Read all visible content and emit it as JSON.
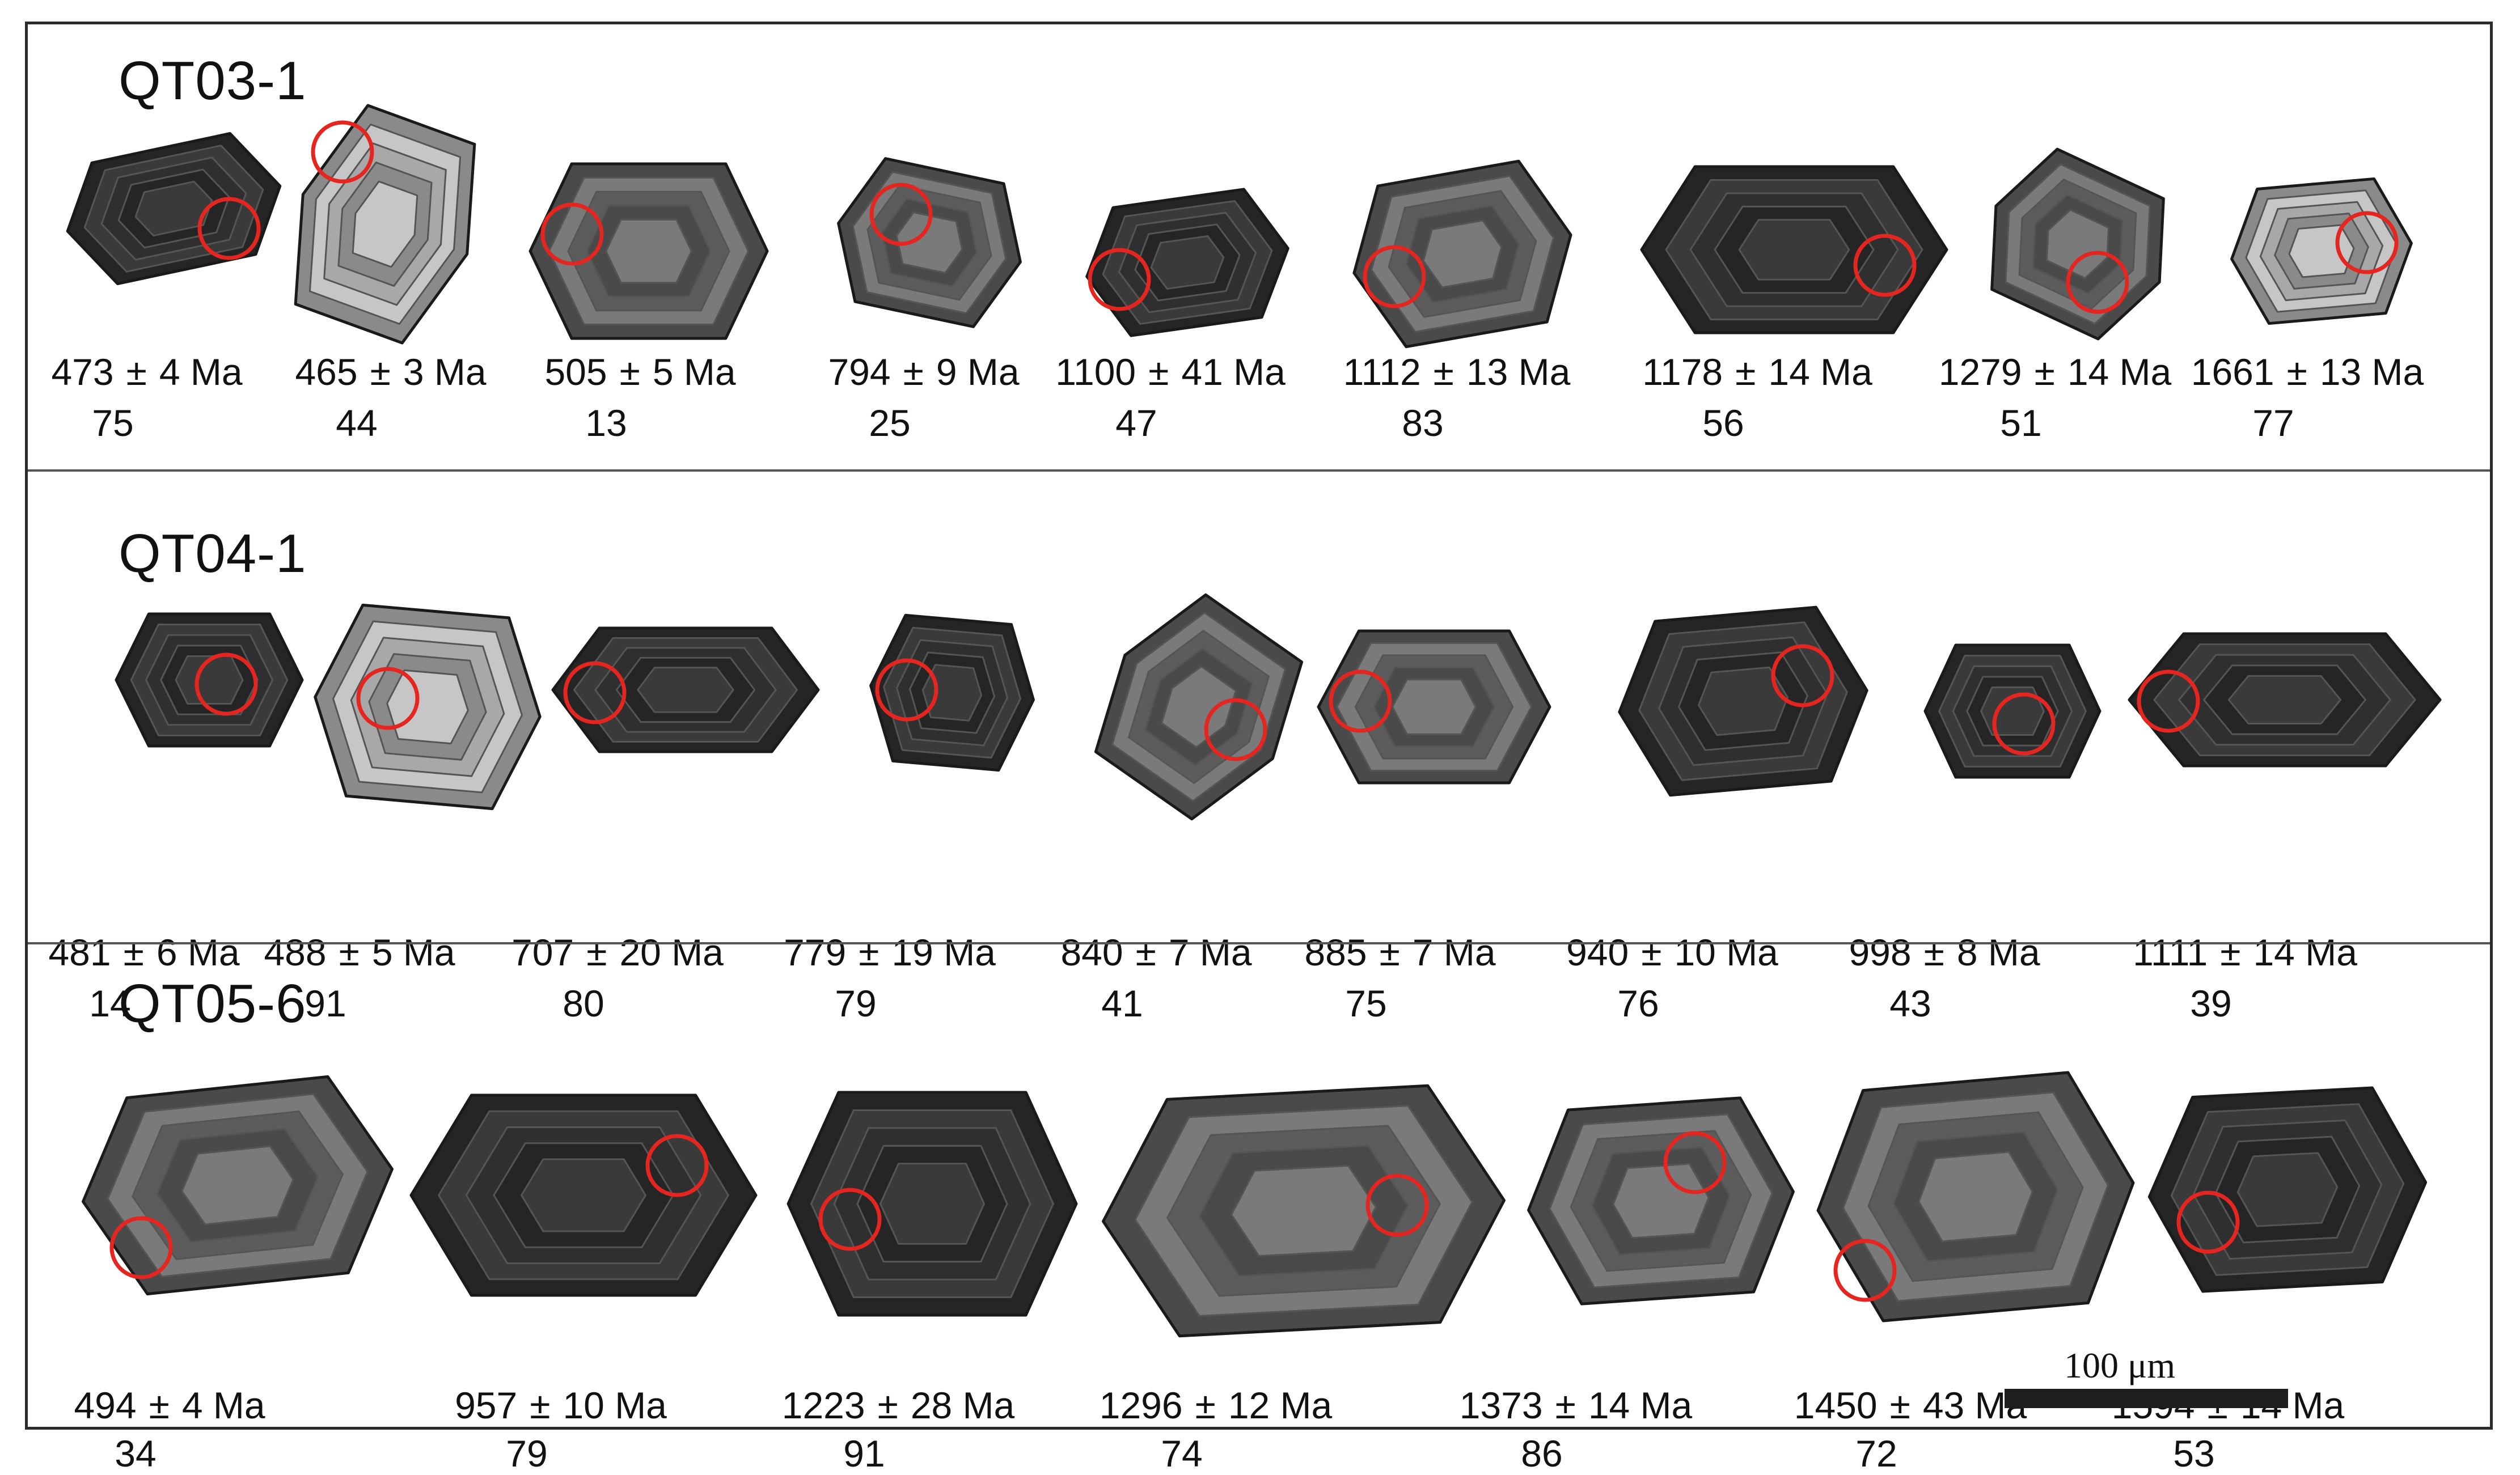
{
  "colors": {
    "spot_circle": "#e52620",
    "frame": "#2b2b2b",
    "grain_dark": "#2e2e2e",
    "grain_mid": "#6a6a6a",
    "grain_light": "#b5b5b5"
  },
  "scale_bar": {
    "label": "100 μm"
  },
  "samples": [
    {
      "name": "QT03-1",
      "grains": [
        {
          "age": "473",
          "error": "4 Ma",
          "concordance": "75",
          "tone": "dark"
        },
        {
          "age": "465",
          "error": "3 Ma",
          "concordance": "44",
          "tone": "light"
        },
        {
          "age": "505",
          "error": "5 Ma",
          "concordance": "13",
          "tone": "mid"
        },
        {
          "age": "794",
          "error": "9 Ma",
          "concordance": "25",
          "tone": "mid"
        },
        {
          "age": "1100",
          "error": "41 Ma",
          "concordance": "47",
          "tone": "dark"
        },
        {
          "age": "1112",
          "error": "13 Ma",
          "concordance": "83",
          "tone": "mid"
        },
        {
          "age": "1178",
          "error": "14 Ma",
          "concordance": "56",
          "tone": "dark"
        },
        {
          "age": "1279",
          "error": "14 Ma",
          "concordance": "51",
          "tone": "mid"
        },
        {
          "age": "1661",
          "error": "13 Ma",
          "concordance": "77",
          "tone": "light"
        }
      ]
    },
    {
      "name": "QT04-1",
      "grains": [
        {
          "age": "481",
          "error": "6 Ma",
          "concordance": "14",
          "tone": "dark"
        },
        {
          "age": "488",
          "error": "5 Ma",
          "concordance": "91",
          "tone": "light"
        },
        {
          "age": "707",
          "error": "20 Ma",
          "concordance": "80",
          "tone": "dark"
        },
        {
          "age": "779",
          "error": "19 Ma",
          "concordance": "79",
          "tone": "dark"
        },
        {
          "age": "840",
          "error": "7 Ma",
          "concordance": "41",
          "tone": "mid"
        },
        {
          "age": "885",
          "error": "7 Ma",
          "concordance": "75",
          "tone": "mid"
        },
        {
          "age": "940",
          "error": "10 Ma",
          "concordance": "76",
          "tone": "dark"
        },
        {
          "age": "998",
          "error": "8 Ma",
          "concordance": "43",
          "tone": "dark"
        },
        {
          "age": "1111",
          "error": "14 Ma",
          "concordance": "39",
          "tone": "dark"
        }
      ]
    },
    {
      "name": "QT05-6",
      "grains": [
        {
          "age": "494",
          "error": "4 Ma",
          "concordance": "34",
          "tone": "mid"
        },
        {
          "age": "957",
          "error": "10 Ma",
          "concordance": "79",
          "tone": "dark"
        },
        {
          "age": "1223",
          "error": "28 Ma",
          "concordance": "91",
          "tone": "dark"
        },
        {
          "age": "1296",
          "error": "12 Ma",
          "concordance": "74",
          "tone": "mid"
        },
        {
          "age": "1373",
          "error": "14 Ma",
          "concordance": "86",
          "tone": "mid"
        },
        {
          "age": "1450",
          "error": "43 Ma",
          "concordance": "72",
          "tone": "mid"
        },
        {
          "age": "1594",
          "error": "14 Ma",
          "concordance": "53",
          "tone": "dark"
        }
      ]
    }
  ]
}
